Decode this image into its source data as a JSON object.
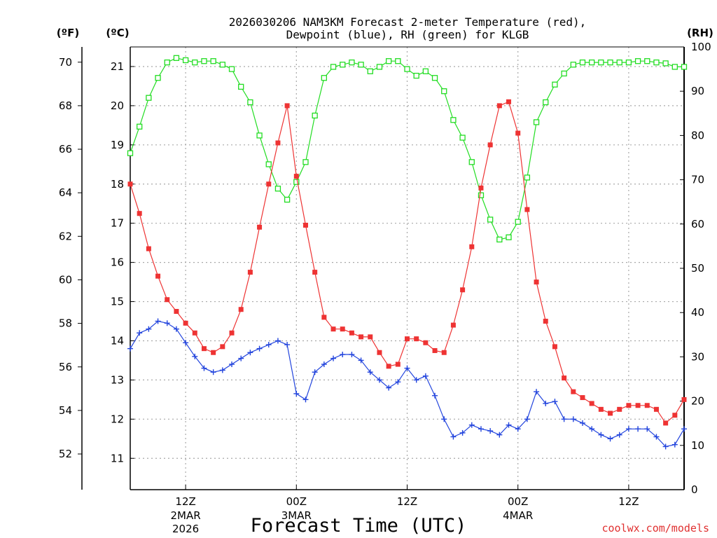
{
  "chart_data": {
    "type": "line",
    "title": "2026030206 NAM3KM Forecast 2-meter Temperature (red),",
    "subtitle": "Dewpoint (blue), RH (green) for KLGB",
    "xlabel": "Forecast Time (UTC)",
    "credit": "coolwx.com/models",
    "units": {
      "fahrenheit": "(ºF)",
      "celsius": "(ºC)",
      "rh": "(RH)"
    },
    "x_hours": [
      6,
      7,
      8,
      9,
      10,
      11,
      12,
      13,
      14,
      15,
      16,
      17,
      18,
      19,
      20,
      21,
      22,
      23,
      24,
      25,
      26,
      27,
      28,
      29,
      30,
      31,
      32,
      33,
      34,
      35,
      36,
      37,
      38,
      39,
      40,
      41,
      42,
      43,
      44,
      45,
      46,
      47,
      48,
      49,
      50,
      51,
      52,
      53,
      54,
      55,
      56,
      57,
      58,
      59,
      60,
      61,
      62,
      63,
      64,
      65,
      66
    ],
    "xlim_hours": [
      6,
      66
    ],
    "x_ticks": [
      {
        "hour": 12,
        "label": "12Z",
        "date": "2MAR",
        "year": "2026"
      },
      {
        "hour": 24,
        "label": "00Z",
        "date": "3MAR",
        "year": ""
      },
      {
        "hour": 36,
        "label": "12Z",
        "date": "",
        "year": ""
      },
      {
        "hour": 48,
        "label": "00Z",
        "date": "4MAR",
        "year": ""
      },
      {
        "hour": 60,
        "label": "12Z",
        "date": "",
        "year": ""
      }
    ],
    "left_axis_celsius": {
      "ylim": [
        10.2,
        21.5
      ],
      "ticks": [
        11,
        12,
        13,
        14,
        15,
        16,
        17,
        18,
        19,
        20,
        21
      ]
    },
    "left_axis_fahrenheit": {
      "ticks": [
        52,
        54,
        56,
        58,
        60,
        62,
        64,
        66,
        68,
        70
      ]
    },
    "right_axis_rh": {
      "ylim": [
        0,
        100
      ],
      "ticks": [
        0,
        10,
        20,
        30,
        40,
        50,
        60,
        70,
        80,
        90,
        100
      ]
    },
    "series": [
      {
        "name": "2-meter Temperature",
        "color": "red",
        "axis": "celsius",
        "marker": "filled-square",
        "values": [
          18.0,
          17.25,
          16.35,
          15.65,
          15.05,
          14.75,
          14.45,
          14.2,
          13.8,
          13.7,
          13.85,
          14.2,
          14.8,
          15.75,
          16.9,
          18.0,
          19.05,
          20.0,
          18.2,
          16.95,
          15.75,
          14.6,
          14.3,
          14.3,
          14.2,
          14.1,
          14.1,
          13.7,
          13.35,
          13.4,
          14.05,
          14.05,
          13.95,
          13.75,
          13.7,
          14.4,
          15.3,
          16.4,
          17.9,
          19.0,
          20.0,
          20.1,
          19.3,
          17.35,
          15.5,
          14.5,
          13.85,
          13.05,
          12.7,
          12.55,
          12.4,
          12.25,
          12.15,
          12.25,
          12.35,
          12.35,
          12.35,
          12.25,
          11.9,
          12.1,
          12.5
        ]
      },
      {
        "name": "Dewpoint",
        "color": "blue",
        "axis": "celsius",
        "marker": "plus",
        "values": [
          13.8,
          14.2,
          14.3,
          14.5,
          14.45,
          14.3,
          13.95,
          13.6,
          13.3,
          13.2,
          13.25,
          13.4,
          13.55,
          13.7,
          13.8,
          13.9,
          14.0,
          13.9,
          12.65,
          12.5,
          13.2,
          13.4,
          13.55,
          13.65,
          13.65,
          13.5,
          13.2,
          13.0,
          12.8,
          12.95,
          13.3,
          13.0,
          13.1,
          12.6,
          12.0,
          11.55,
          11.65,
          11.85,
          11.75,
          11.7,
          11.6,
          11.85,
          11.75,
          12.0,
          12.7,
          12.4,
          12.45,
          12.0,
          12.0,
          11.9,
          11.75,
          11.6,
          11.5,
          11.6,
          11.75,
          11.75,
          11.75,
          11.55,
          11.3,
          11.35,
          11.75
        ]
      },
      {
        "name": "RH",
        "color": "green",
        "axis": "rh",
        "marker": "open-square",
        "values": [
          76,
          82,
          88.5,
          93,
          96.5,
          97.5,
          97,
          96.5,
          96.8,
          96.8,
          96,
          95,
          91,
          87.5,
          80,
          73.5,
          68,
          65.5,
          69.5,
          74,
          84.5,
          93,
          95.5,
          96,
          96.5,
          96,
          94.5,
          95.5,
          96.8,
          96.8,
          95,
          93.5,
          94.5,
          93,
          90,
          83.5,
          79.5,
          74,
          66.5,
          61,
          56.5,
          57,
          60.5,
          70.5,
          83,
          87.5,
          91.5,
          94,
          96,
          96.5,
          96.5,
          96.5,
          96.5,
          96.5,
          96.5,
          96.8,
          96.8,
          96.5,
          96.3,
          95.5,
          95.5
        ]
      }
    ]
  }
}
